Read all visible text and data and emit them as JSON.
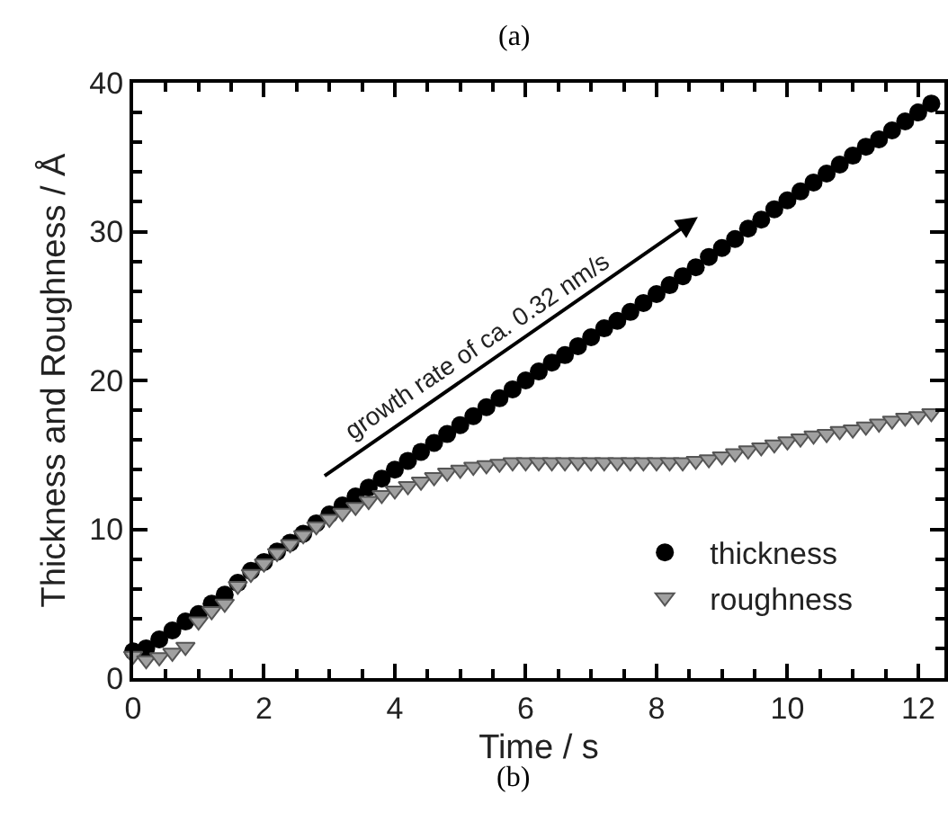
{
  "chart_data": {
    "type": "scatter",
    "xlabel": "Time / s",
    "ylabel": "Thickness and Roughness / Å",
    "xlim": [
      0,
      12.4
    ],
    "xticks": [
      0,
      2,
      4,
      6,
      8,
      10,
      12
    ],
    "ylim": [
      0,
      40
    ],
    "yticks": [
      0,
      10,
      20,
      30,
      40
    ],
    "grid": false,
    "legend": "bottom right",
    "annotations": [
      "(a)",
      "(b)",
      "growth rate of ca. 0.32 nm/s"
    ],
    "x": [
      0,
      0.2,
      0.4,
      0.6,
      0.8,
      1.0,
      1.2,
      1.4,
      1.6,
      1.8,
      2.0,
      2.2,
      2.4,
      2.6,
      2.8,
      3.0,
      3.2,
      3.4,
      3.6,
      3.8,
      4.0,
      4.2,
      4.4,
      4.6,
      4.8,
      5.0,
      5.2,
      5.4,
      5.6,
      5.8,
      6.0,
      6.2,
      6.4,
      6.6,
      6.8,
      7.0,
      7.2,
      7.4,
      7.6,
      7.8,
      8.0,
      8.2,
      8.4,
      8.6,
      8.8,
      9.0,
      9.2,
      9.4,
      9.6,
      9.8,
      10.0,
      10.2,
      10.4,
      10.6,
      10.8,
      11.0,
      11.2,
      11.4,
      11.6,
      11.8,
      12.0,
      12.2
    ],
    "series": [
      {
        "name": "thickness",
        "color": "#000000",
        "marker": "circle",
        "values": [
          1.8,
          2.0,
          2.6,
          3.2,
          3.8,
          4.3,
          5.0,
          5.6,
          6.4,
          7.2,
          7.8,
          8.5,
          9.1,
          9.7,
          10.4,
          11.0,
          11.6,
          12.2,
          12.8,
          13.4,
          14.0,
          14.6,
          15.2,
          15.8,
          16.4,
          17.0,
          17.6,
          18.2,
          18.8,
          19.4,
          20.0,
          20.6,
          21.2,
          21.7,
          22.3,
          22.9,
          23.5,
          24.0,
          24.6,
          25.2,
          25.8,
          26.4,
          27.0,
          27.6,
          28.3,
          28.9,
          29.5,
          30.2,
          30.8,
          31.5,
          32.1,
          32.7,
          33.3,
          33.9,
          34.5,
          35.1,
          35.7,
          36.2,
          36.8,
          37.4,
          38.0,
          38.6
        ]
      },
      {
        "name": "roughness",
        "color": "#a0a0a0",
        "marker": "triangle",
        "values": [
          1.5,
          1.2,
          1.4,
          1.7,
          2.1,
          3.8,
          4.5,
          5.0,
          6.2,
          7.0,
          7.7,
          8.4,
          9.0,
          9.6,
          10.2,
          10.7,
          11.1,
          11.5,
          11.9,
          12.3,
          12.6,
          12.9,
          13.2,
          13.5,
          13.8,
          14.0,
          14.2,
          14.3,
          14.4,
          14.5,
          14.5,
          14.5,
          14.5,
          14.5,
          14.5,
          14.5,
          14.5,
          14.5,
          14.5,
          14.5,
          14.5,
          14.5,
          14.5,
          14.6,
          14.7,
          14.9,
          15.1,
          15.3,
          15.5,
          15.7,
          15.9,
          16.1,
          16.3,
          16.4,
          16.6,
          16.7,
          16.9,
          17.1,
          17.3,
          17.5,
          17.6,
          17.8
        ]
      }
    ]
  }
}
